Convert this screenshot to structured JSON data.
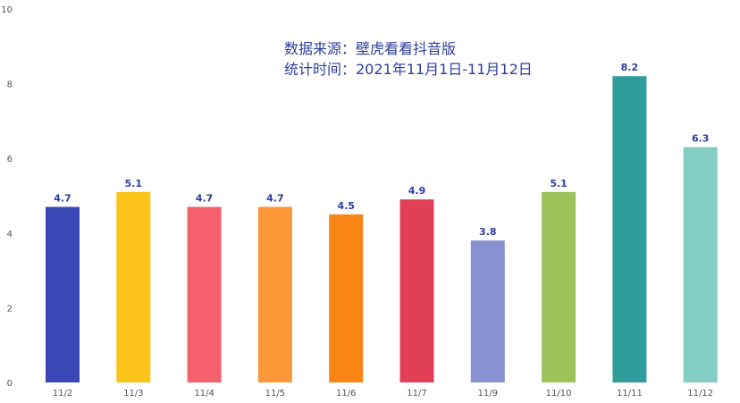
{
  "chart_data": {
    "type": "bar",
    "annotations": [
      "数据来源：壁虎看看抖音版",
      "统计时间：2021年11月1日-11月12日"
    ],
    "categories": [
      "11/2",
      "11/3",
      "11/4",
      "11/5",
      "11/6",
      "11/7",
      "11/9",
      "11/10",
      "11/11",
      "11/12"
    ],
    "values": [
      4.7,
      5.1,
      4.7,
      4.7,
      4.5,
      4.9,
      3.8,
      5.1,
      8.2,
      6.3
    ],
    "bar_colors": [
      "#3b47b4",
      "#fcc419",
      "#f4606c",
      "#fb9736",
      "#f98516",
      "#e23e57",
      "#8891d2",
      "#9dc25a",
      "#2e9c9a",
      "#84cdc3"
    ],
    "yticks": [
      0,
      2,
      4,
      6,
      8,
      10
    ],
    "ylim": [
      0,
      10
    ],
    "grid": false,
    "label_color": "#2f3d9c"
  }
}
